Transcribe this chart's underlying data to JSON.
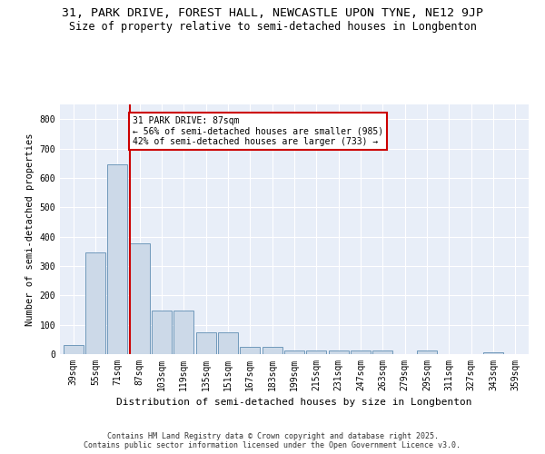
{
  "title1": "31, PARK DRIVE, FOREST HALL, NEWCASTLE UPON TYNE, NE12 9JP",
  "title2": "Size of property relative to semi-detached houses in Longbenton",
  "xlabel": "Distribution of semi-detached houses by size in Longbenton",
  "ylabel": "Number of semi-detached properties",
  "categories": [
    "39sqm",
    "55sqm",
    "71sqm",
    "87sqm",
    "103sqm",
    "119sqm",
    "135sqm",
    "151sqm",
    "167sqm",
    "183sqm",
    "199sqm",
    "215sqm",
    "231sqm",
    "247sqm",
    "263sqm",
    "279sqm",
    "295sqm",
    "311sqm",
    "327sqm",
    "343sqm",
    "359sqm"
  ],
  "values": [
    30,
    345,
    645,
    378,
    148,
    148,
    75,
    75,
    25,
    25,
    13,
    13,
    13,
    13,
    13,
    0,
    13,
    0,
    0,
    5,
    0
  ],
  "bar_color": "#ccd9e8",
  "bar_edge_color": "#7099bb",
  "vline_color": "#cc0000",
  "annotation_text": "31 PARK DRIVE: 87sqm\n← 56% of semi-detached houses are smaller (985)\n42% of semi-detached houses are larger (733) →",
  "annotation_box_color": "white",
  "annotation_box_edge_color": "#cc0000",
  "ylim": [
    0,
    850
  ],
  "yticks": [
    0,
    100,
    200,
    300,
    400,
    500,
    600,
    700,
    800
  ],
  "plot_bg_color": "#e8eef8",
  "footer_text": "Contains HM Land Registry data © Crown copyright and database right 2025.\nContains public sector information licensed under the Open Government Licence v3.0.",
  "title1_fontsize": 9.5,
  "title2_fontsize": 8.5,
  "tick_fontsize": 7,
  "xlabel_fontsize": 8,
  "ylabel_fontsize": 7.5,
  "footer_fontsize": 6,
  "annot_fontsize": 7
}
